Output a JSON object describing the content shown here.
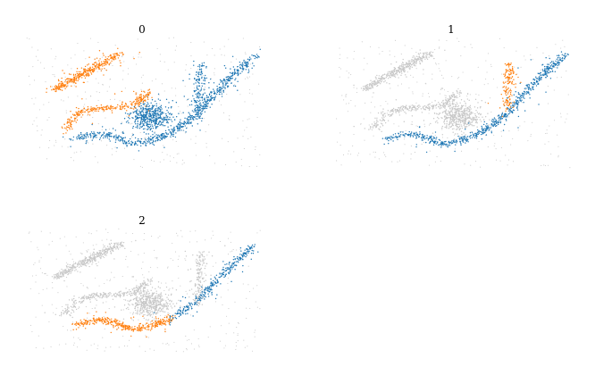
{
  "figure": {
    "panel_titles": [
      "0",
      "1",
      "2"
    ]
  },
  "colors": {
    "background_points": "#c8c8c8",
    "blue": "#1f77b4",
    "orange": "#ff7f0e"
  },
  "chart_data": [
    {
      "type": "scatter",
      "title": "0",
      "xlabel": "",
      "ylabel": "",
      "grid": false,
      "axes_visible": false,
      "xlim": [
        0,
        1
      ],
      "ylim": [
        0,
        1
      ],
      "series": [
        {
          "color": "#1f77b4",
          "segments": [
            {
              "kind": "path",
              "points": [
                [
                  0.2,
                  0.22
                ],
                [
                  0.3,
                  0.26
                ],
                [
                  0.38,
                  0.24
                ],
                [
                  0.45,
                  0.18
                ],
                [
                  0.52,
                  0.2
                ],
                [
                  0.62,
                  0.27
                ],
                [
                  0.72,
                  0.4
                ],
                [
                  0.82,
                  0.6
                ],
                [
                  0.92,
                  0.78
                ],
                [
                  0.98,
                  0.86
                ]
              ],
              "n": 700
            },
            {
              "kind": "path",
              "points": [
                [
                  0.73,
                  0.38
                ],
                [
                  0.735,
                  0.55
                ],
                [
                  0.74,
                  0.72
                ],
                [
                  0.742,
                  0.8
                ]
              ],
              "n": 170
            },
            {
              "kind": "blob",
              "center": [
                0.53,
                0.39
              ],
              "spread": [
                0.08,
                0.1
              ],
              "n": 450
            }
          ]
        },
        {
          "color": "#ff7f0e",
          "segments": [
            {
              "kind": "path",
              "points": [
                [
                  0.16,
                  0.3
                ],
                [
                  0.22,
                  0.42
                ],
                [
                  0.3,
                  0.46
                ],
                [
                  0.38,
                  0.46
                ],
                [
                  0.46,
                  0.48
                ],
                [
                  0.52,
                  0.58
                ]
              ],
              "n": 300
            },
            {
              "kind": "path",
              "points": [
                [
                  0.12,
                  0.6
                ],
                [
                  0.22,
                  0.7
                ],
                [
                  0.32,
                  0.8
                ],
                [
                  0.4,
                  0.88
                ]
              ],
              "n": 380
            }
          ]
        },
        {
          "color": "#c8c8c8",
          "segments": [
            {
              "kind": "scatter",
              "n": 320
            }
          ]
        }
      ]
    },
    {
      "type": "scatter",
      "title": "1",
      "xlabel": "",
      "ylabel": "",
      "grid": false,
      "axes_visible": false,
      "xlim": [
        0,
        1
      ],
      "ylim": [
        0,
        1
      ],
      "series": [
        {
          "color": "#c8c8c8",
          "segments": [
            {
              "kind": "path",
              "points": [
                [
                  0.16,
                  0.3
                ],
                [
                  0.22,
                  0.42
                ],
                [
                  0.3,
                  0.46
                ],
                [
                  0.38,
                  0.46
                ],
                [
                  0.46,
                  0.48
                ],
                [
                  0.52,
                  0.58
                ]
              ],
              "n": 300
            },
            {
              "kind": "path",
              "points": [
                [
                  0.12,
                  0.6
                ],
                [
                  0.22,
                  0.7
                ],
                [
                  0.32,
                  0.8
                ],
                [
                  0.4,
                  0.88
                ]
              ],
              "n": 380
            },
            {
              "kind": "blob",
              "center": [
                0.53,
                0.39
              ],
              "spread": [
                0.08,
                0.1
              ],
              "n": 450
            },
            {
              "kind": "scatter",
              "n": 320
            }
          ]
        },
        {
          "color": "#1f77b4",
          "segments": [
            {
              "kind": "path",
              "points": [
                [
                  0.2,
                  0.22
                ],
                [
                  0.3,
                  0.26
                ],
                [
                  0.38,
                  0.24
                ],
                [
                  0.45,
                  0.18
                ],
                [
                  0.52,
                  0.2
                ],
                [
                  0.62,
                  0.27
                ],
                [
                  0.72,
                  0.4
                ],
                [
                  0.82,
                  0.6
                ],
                [
                  0.92,
                  0.78
                ],
                [
                  0.98,
                  0.86
                ]
              ],
              "n": 700
            }
          ]
        },
        {
          "color": "#ff7f0e",
          "segments": [
            {
              "kind": "path",
              "points": [
                [
                  0.73,
                  0.45
                ],
                [
                  0.735,
                  0.6
                ],
                [
                  0.74,
                  0.72
                ],
                [
                  0.742,
                  0.8
                ]
              ],
              "n": 150
            }
          ]
        }
      ]
    },
    {
      "type": "scatter",
      "title": "2",
      "xlabel": "",
      "ylabel": "",
      "grid": false,
      "axes_visible": false,
      "xlim": [
        0,
        1
      ],
      "ylim": [
        0,
        1
      ],
      "series": [
        {
          "color": "#c8c8c8",
          "segments": [
            {
              "kind": "path",
              "points": [
                [
                  0.16,
                  0.3
                ],
                [
                  0.22,
                  0.42
                ],
                [
                  0.3,
                  0.46
                ],
                [
                  0.38,
                  0.46
                ],
                [
                  0.46,
                  0.48
                ],
                [
                  0.52,
                  0.58
                ]
              ],
              "n": 300
            },
            {
              "kind": "path",
              "points": [
                [
                  0.12,
                  0.6
                ],
                [
                  0.22,
                  0.7
                ],
                [
                  0.32,
                  0.8
                ],
                [
                  0.4,
                  0.88
                ]
              ],
              "n": 380
            },
            {
              "kind": "blob",
              "center": [
                0.53,
                0.39
              ],
              "spread": [
                0.08,
                0.1
              ],
              "n": 450
            },
            {
              "kind": "path",
              "points": [
                [
                  0.73,
                  0.38
                ],
                [
                  0.735,
                  0.55
                ],
                [
                  0.74,
                  0.72
                ],
                [
                  0.742,
                  0.8
                ]
              ],
              "n": 170
            },
            {
              "kind": "scatter",
              "n": 320
            }
          ]
        },
        {
          "color": "#ff7f0e",
          "segments": [
            {
              "kind": "path",
              "points": [
                [
                  0.2,
                  0.22
                ],
                [
                  0.3,
                  0.26
                ],
                [
                  0.38,
                  0.24
                ],
                [
                  0.45,
                  0.18
                ],
                [
                  0.52,
                  0.2
                ],
                [
                  0.62,
                  0.27
                ]
              ],
              "n": 380
            }
          ]
        },
        {
          "color": "#1f77b4",
          "segments": [
            {
              "kind": "path",
              "points": [
                [
                  0.62,
                  0.27
                ],
                [
                  0.72,
                  0.4
                ],
                [
                  0.82,
                  0.6
                ],
                [
                  0.92,
                  0.78
                ],
                [
                  0.98,
                  0.86
                ]
              ],
              "n": 320
            }
          ]
        }
      ]
    }
  ]
}
